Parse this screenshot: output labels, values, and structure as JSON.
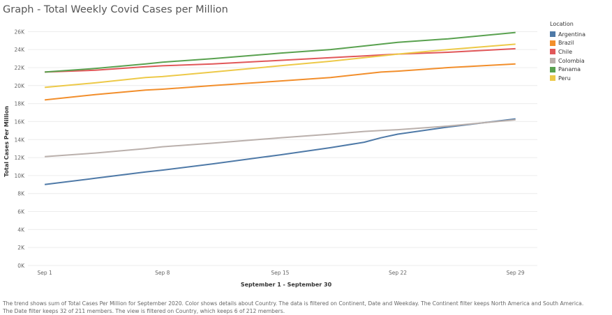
{
  "title": "Graph - Total Weekly Covid Cases per Million",
  "legend": {
    "title": "Location"
  },
  "caption": {
    "line1": "The trend shows sum of Total Cases Per Million for September 2020.  Color shows details about Country. The data is filtered on Continent, Date and Weekday. The Continent filter keeps North America and South America.",
    "line2": "The Date filter keeps 32 of 211 members. The view is filtered on Country, which keeps 6 of 212 members."
  },
  "chart_data": {
    "type": "line",
    "title": "Graph - Total Weekly Covid Cases per Million",
    "xlabel": "September 1 - September 30",
    "ylabel": "Total Cases Per Million",
    "ylim": [
      0,
      26800
    ],
    "y_ticks": [
      0,
      2000,
      4000,
      6000,
      8000,
      10000,
      12000,
      14000,
      16000,
      18000,
      20000,
      22000,
      24000,
      26000
    ],
    "y_tick_labels": [
      "0K",
      "2K",
      "4K",
      "6K",
      "8K",
      "10K",
      "12K",
      "14K",
      "16K",
      "18K",
      "20K",
      "22K",
      "24K",
      "26K"
    ],
    "x_ticks": [
      1,
      8,
      15,
      22,
      29
    ],
    "x_tick_labels": [
      "Sep 1",
      "Sep 8",
      "Sep 15",
      "Sep 22",
      "Sep 29"
    ],
    "x": [
      1,
      4,
      7,
      8,
      11,
      15,
      18,
      20,
      21,
      22,
      25,
      29
    ],
    "grid": "horizontal",
    "legend_position": "right",
    "series": [
      {
        "name": "Argentina",
        "color": "#4e79a7",
        "values": [
          9000,
          9700,
          10400,
          10600,
          11300,
          12300,
          13100,
          13700,
          14200,
          14600,
          15400,
          16300
        ]
      },
      {
        "name": "Brazil",
        "color": "#f28e2b",
        "values": [
          18400,
          19000,
          19500,
          19600,
          20000,
          20500,
          20900,
          21300,
          21500,
          21600,
          22000,
          22400
        ]
      },
      {
        "name": "Chile",
        "color": "#e15759",
        "values": [
          21500,
          21700,
          22100,
          22200,
          22400,
          22800,
          23100,
          23300,
          23400,
          23500,
          23700,
          24100
        ]
      },
      {
        "name": "Colombia",
        "color": "#bab0ac",
        "values": [
          12100,
          12500,
          13000,
          13200,
          13600,
          14200,
          14600,
          14900,
          15000,
          15100,
          15500,
          16200
        ]
      },
      {
        "name": "Panama",
        "color": "#59a14f",
        "values": [
          21500,
          21900,
          22400,
          22600,
          23000,
          23600,
          24000,
          24400,
          24600,
          24800,
          25200,
          25900
        ]
      },
      {
        "name": "Peru",
        "color": "#edc948",
        "values": [
          19800,
          20300,
          20900,
          21000,
          21500,
          22200,
          22700,
          23100,
          23300,
          23500,
          24000,
          24600
        ]
      }
    ]
  }
}
